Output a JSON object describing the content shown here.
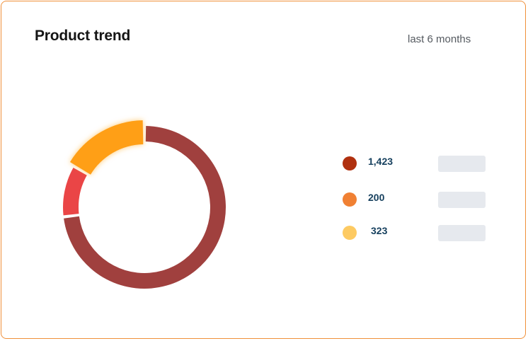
{
  "header": {
    "title": "Product trend",
    "range_label": "last 6 months"
  },
  "chart_data": {
    "type": "pie",
    "variant": "donut",
    "title": "Product trend",
    "series": [
      {
        "value": 1423,
        "label": "1,423",
        "color": "#a0403e"
      },
      {
        "value": 200,
        "label": "200",
        "color": "#ea4546"
      },
      {
        "value": 323,
        "label": "323",
        "color": "#ff9f19"
      }
    ],
    "highlighted_index": 2,
    "legend_placement": "right",
    "legend_colors": [
      "#b0300f",
      "#f08033",
      "#fdca62"
    ]
  }
}
